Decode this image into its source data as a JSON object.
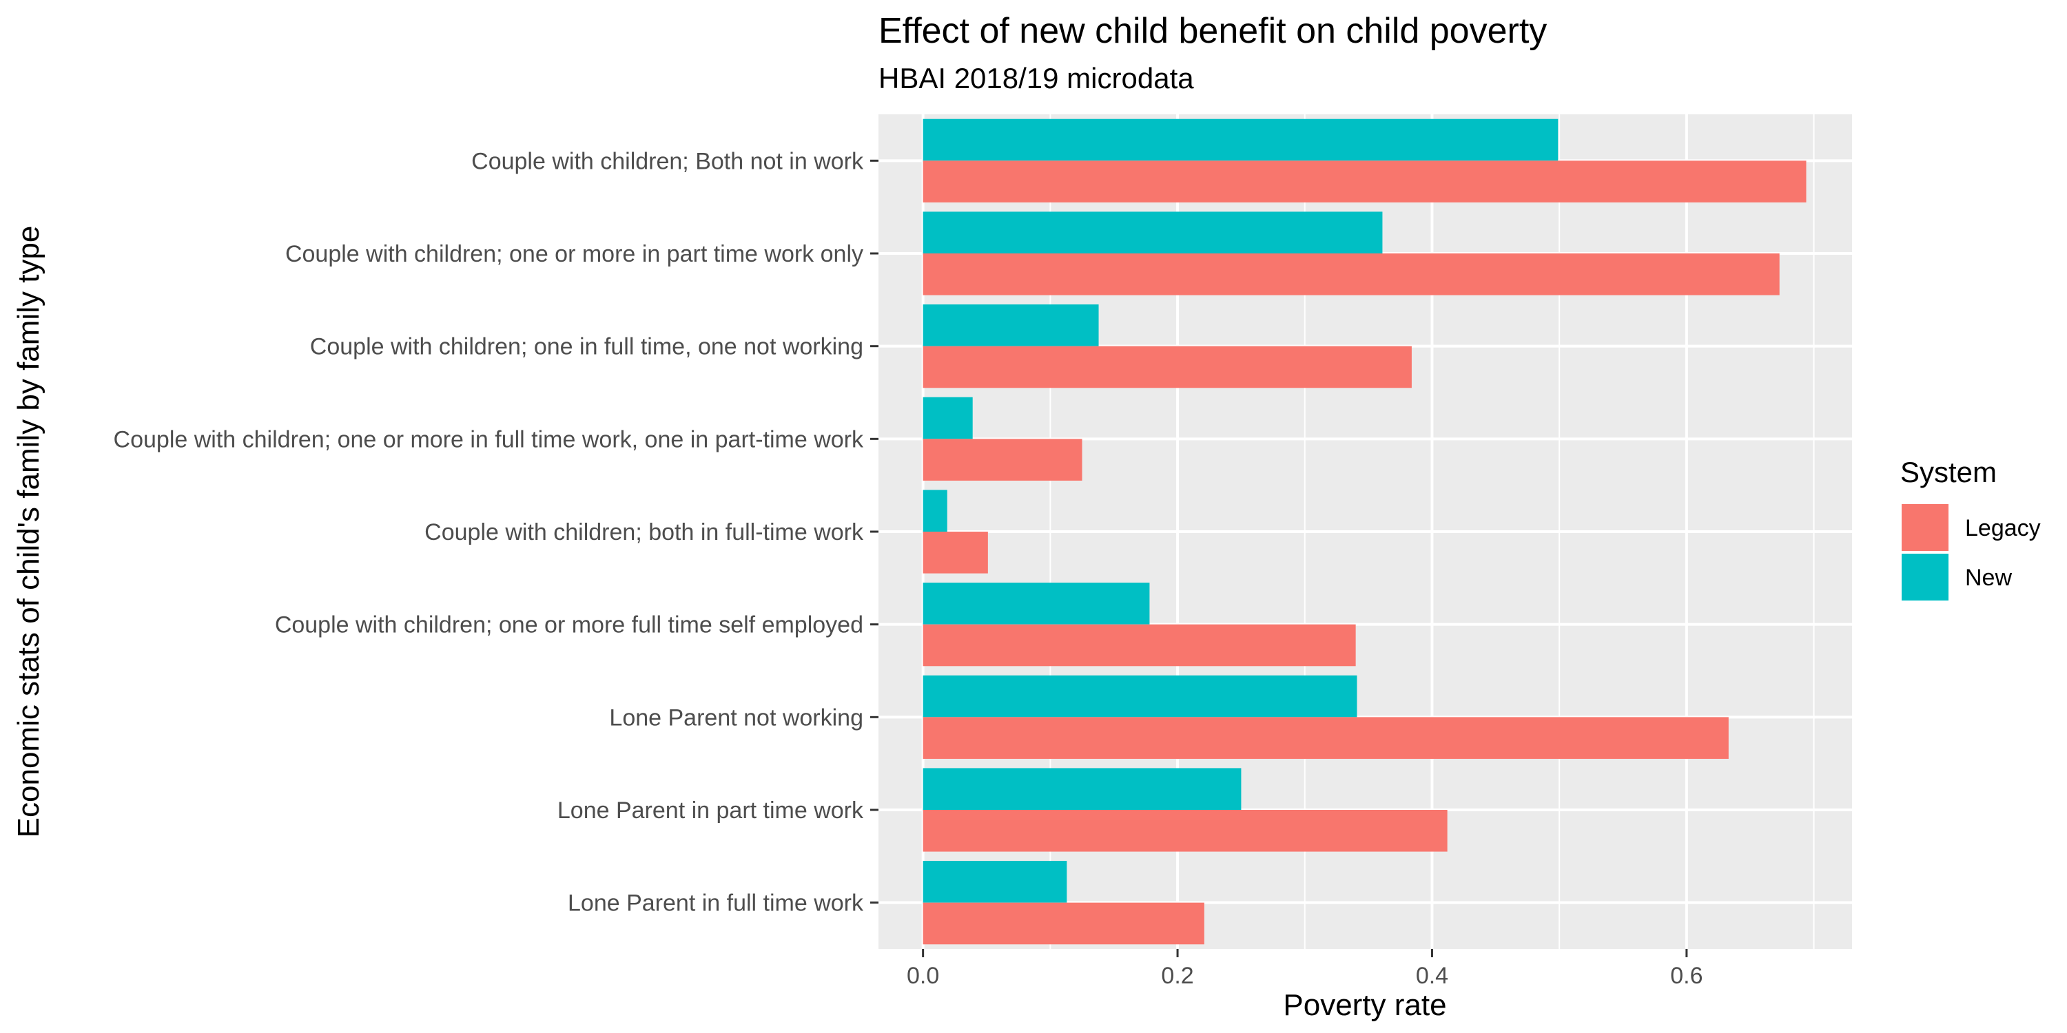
{
  "chart_data": {
    "type": "bar",
    "orientation": "horizontal",
    "title": "Effect of new child benefit on child poverty",
    "subtitle": "HBAI 2018/19 microdata",
    "xlabel": "Poverty rate",
    "ylabel": "Economic stats of child's family by family type",
    "xlim": [
      -0.035,
      0.73
    ],
    "xticks": [
      0.0,
      0.2,
      0.4,
      0.6
    ],
    "xtick_labels": [
      "0.0",
      "0.2",
      "0.4",
      "0.6"
    ],
    "grid": true,
    "categories": [
      "Couple with children; Both not in work",
      "Couple with children; one or more in part time work only",
      "Couple with children; one in full time, one not working",
      "Couple with children; one or more in full time work, one in part-time work",
      "Couple with children; both in full-time work",
      "Couple with children; one or more full time self employed",
      "Lone Parent not working",
      "Lone Parent in part time work",
      "Lone Parent in full time work"
    ],
    "series": [
      {
        "name": "New",
        "color": "#00BFC4",
        "values": [
          0.499,
          0.361,
          0.138,
          0.039,
          0.019,
          0.178,
          0.341,
          0.25,
          0.113
        ]
      },
      {
        "name": "Legacy",
        "color": "#F8766D",
        "values": [
          0.694,
          0.673,
          0.384,
          0.125,
          0.051,
          0.34,
          0.633,
          0.412,
          0.221
        ]
      }
    ],
    "legend": {
      "title": "System",
      "position": "right",
      "items": [
        {
          "label": "Legacy",
          "color": "#F8766D"
        },
        {
          "label": "New",
          "color": "#00BFC4"
        }
      ]
    },
    "panel_background": "#EBEBEB",
    "gridline_color": "#FFFFFF"
  }
}
